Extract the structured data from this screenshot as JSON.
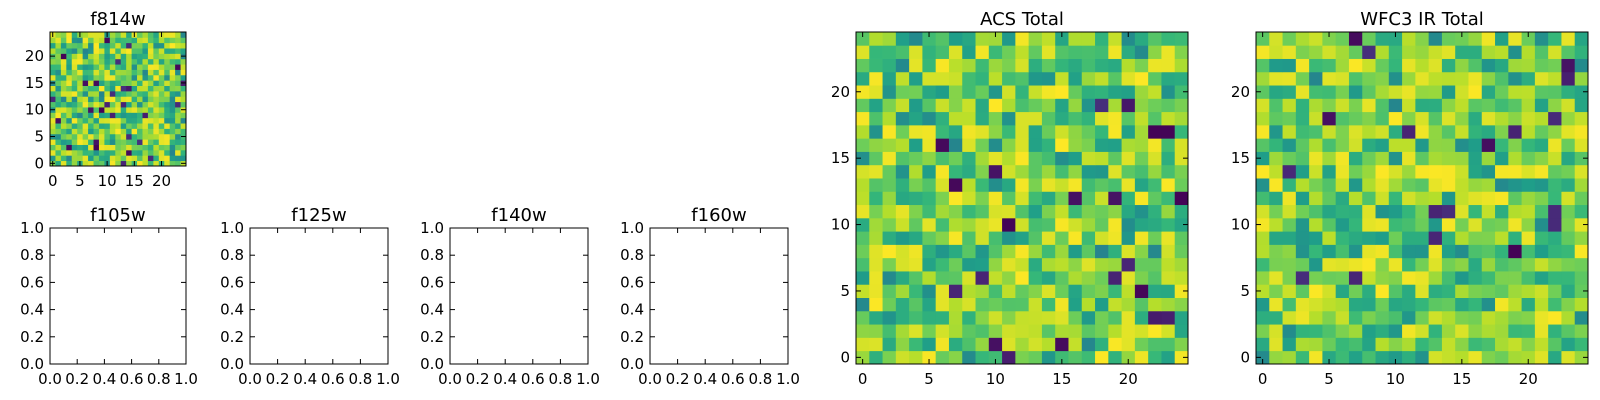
{
  "chart_data": [
    {
      "type": "heatmap",
      "title": "f814w",
      "xlim": [
        -0.5,
        24.5
      ],
      "ylim": [
        -0.5,
        24.5
      ],
      "x_ticks": [
        0,
        5,
        10,
        15,
        20
      ],
      "y_ticks": [
        0,
        5,
        10,
        15,
        20
      ],
      "x_tick_labels": [
        "0",
        "5",
        "10",
        "15",
        "20"
      ],
      "y_tick_labels": [
        "0",
        "5",
        "10",
        "15",
        "20"
      ],
      "grid_size": [
        25,
        25
      ],
      "colormap": "viridis",
      "seed": 814
    },
    {
      "type": "empty",
      "title": "f105w",
      "xlim": [
        0,
        1
      ],
      "ylim": [
        0,
        1
      ],
      "x_ticks": [
        0,
        0.2,
        0.4,
        0.6,
        0.8,
        1.0
      ],
      "y_ticks": [
        0,
        0.2,
        0.4,
        0.6,
        0.8,
        1.0
      ],
      "x_tick_labels": [
        "0.0",
        "0.2",
        "0.4",
        "0.6",
        "0.8",
        "1.0"
      ],
      "y_tick_labels": [
        "0.0",
        "0.2",
        "0.4",
        "0.6",
        "0.8",
        "1.0"
      ]
    },
    {
      "type": "empty",
      "title": "f125w",
      "xlim": [
        0,
        1
      ],
      "ylim": [
        0,
        1
      ],
      "x_ticks": [
        0,
        0.2,
        0.4,
        0.6,
        0.8,
        1.0
      ],
      "y_ticks": [
        0,
        0.2,
        0.4,
        0.6,
        0.8,
        1.0
      ],
      "x_tick_labels": [
        "0.0",
        "0.2",
        "0.4",
        "0.6",
        "0.8",
        "1.0"
      ],
      "y_tick_labels": [
        "0.0",
        "0.2",
        "0.4",
        "0.6",
        "0.8",
        "1.0"
      ]
    },
    {
      "type": "empty",
      "title": "f140w",
      "xlim": [
        0,
        1
      ],
      "ylim": [
        0,
        1
      ],
      "x_ticks": [
        0,
        0.2,
        0.4,
        0.6,
        0.8,
        1.0
      ],
      "y_ticks": [
        0,
        0.2,
        0.4,
        0.6,
        0.8,
        1.0
      ],
      "x_tick_labels": [
        "0.0",
        "0.2",
        "0.4",
        "0.6",
        "0.8",
        "1.0"
      ],
      "y_tick_labels": [
        "0.0",
        "0.2",
        "0.4",
        "0.6",
        "0.8",
        "1.0"
      ]
    },
    {
      "type": "empty",
      "title": "f160w",
      "xlim": [
        0,
        1
      ],
      "ylim": [
        0,
        1
      ],
      "x_ticks": [
        0,
        0.2,
        0.4,
        0.6,
        0.8,
        1.0
      ],
      "y_ticks": [
        0,
        0.2,
        0.4,
        0.6,
        0.8,
        1.0
      ],
      "x_tick_labels": [
        "0.0",
        "0.2",
        "0.4",
        "0.6",
        "0.8",
        "1.0"
      ],
      "y_tick_labels": [
        "0.0",
        "0.2",
        "0.4",
        "0.6",
        "0.8",
        "1.0"
      ]
    },
    {
      "type": "heatmap",
      "title": "ACS Total",
      "xlim": [
        -0.5,
        24.5
      ],
      "ylim": [
        -0.5,
        24.5
      ],
      "x_ticks": [
        0,
        5,
        10,
        15,
        20
      ],
      "y_ticks": [
        0,
        5,
        10,
        15,
        20
      ],
      "x_tick_labels": [
        "0",
        "5",
        "10",
        "15",
        "20"
      ],
      "y_tick_labels": [
        "0",
        "5",
        "10",
        "15",
        "20"
      ],
      "grid_size": [
        25,
        25
      ],
      "colormap": "viridis",
      "seed": 1001
    },
    {
      "type": "heatmap",
      "title": "WFC3 IR Total",
      "xlim": [
        -0.5,
        24.5
      ],
      "ylim": [
        -0.5,
        24.5
      ],
      "x_ticks": [
        0,
        5,
        10,
        15,
        20
      ],
      "y_ticks": [
        0,
        5,
        10,
        15,
        20
      ],
      "x_tick_labels": [
        "0",
        "5",
        "10",
        "15",
        "20"
      ],
      "y_tick_labels": [
        "0",
        "5",
        "10",
        "15",
        "20"
      ],
      "grid_size": [
        25,
        25
      ],
      "colormap": "viridis",
      "seed": 2002
    }
  ]
}
